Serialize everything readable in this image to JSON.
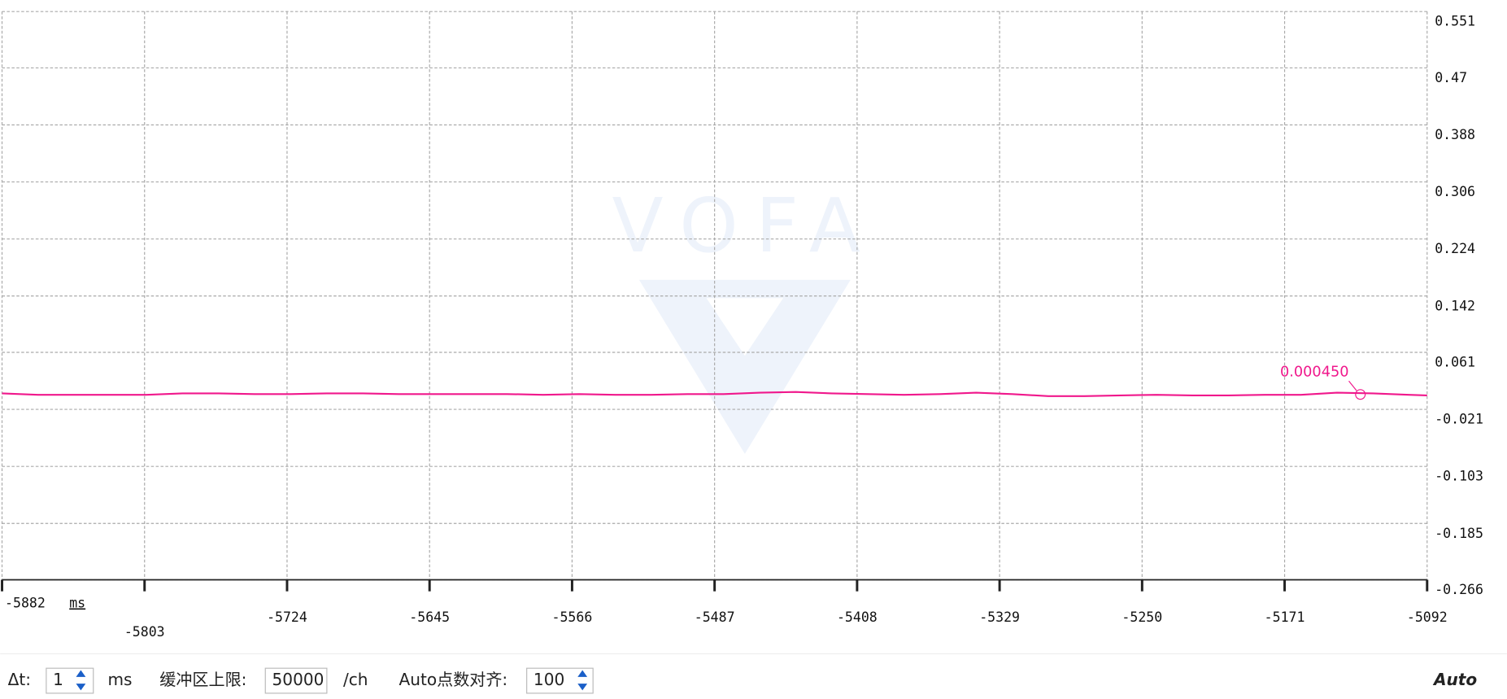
{
  "chart_data": {
    "type": "line",
    "watermark": "VOFA",
    "xlabel": "ms",
    "x": [
      -5882,
      -5862,
      -5842,
      -5822,
      -5802,
      -5782,
      -5762,
      -5742,
      -5722,
      -5702,
      -5682,
      -5662,
      -5642,
      -5622,
      -5602,
      -5582,
      -5562,
      -5542,
      -5522,
      -5502,
      -5482,
      -5462,
      -5442,
      -5422,
      -5402,
      -5382,
      -5362,
      -5342,
      -5322,
      -5302,
      -5282,
      -5262,
      -5242,
      -5222,
      -5202,
      -5182,
      -5162,
      -5142,
      -5122,
      -5102,
      -5092
    ],
    "values": [
      0.002,
      0.0,
      0.0,
      0.0,
      0.0,
      0.002,
      0.002,
      0.001,
      0.001,
      0.002,
      0.002,
      0.001,
      0.001,
      0.001,
      0.001,
      0.0,
      0.001,
      0.0,
      0.0,
      0.001,
      0.001,
      0.003,
      0.004,
      0.002,
      0.001,
      0.0,
      0.001,
      0.003,
      0.001,
      -0.002,
      -0.002,
      -0.001,
      0.0,
      -0.001,
      -0.001,
      0.0,
      0.0,
      0.003,
      0.002,
      0.0,
      -0.001
    ],
    "color": "#f0188c",
    "xlim": [
      -5882,
      -5092
    ],
    "xticks": [
      -5882,
      -5803,
      -5724,
      -5645,
      -5566,
      -5487,
      -5408,
      -5329,
      -5250,
      -5171,
      -5092
    ],
    "ylim": [
      -0.266,
      0.551
    ],
    "yticks": [
      0.551,
      0.47,
      0.388,
      0.306,
      0.224,
      0.142,
      0.061,
      -0.021,
      -0.103,
      -0.185,
      -0.266
    ],
    "grid": true,
    "annotations": [
      {
        "x": -5129,
        "value": 0.00045,
        "label": "0.000450"
      }
    ]
  },
  "toolbar": {
    "dt_label": "Δt:",
    "dt_value": "1",
    "dt_unit": "ms",
    "buffer_label": "缓冲区上限:",
    "buffer_value": "50000",
    "buffer_unit": "/ch",
    "align_label": "Auto点数对齐:",
    "align_value": "100",
    "mode": "Auto"
  }
}
